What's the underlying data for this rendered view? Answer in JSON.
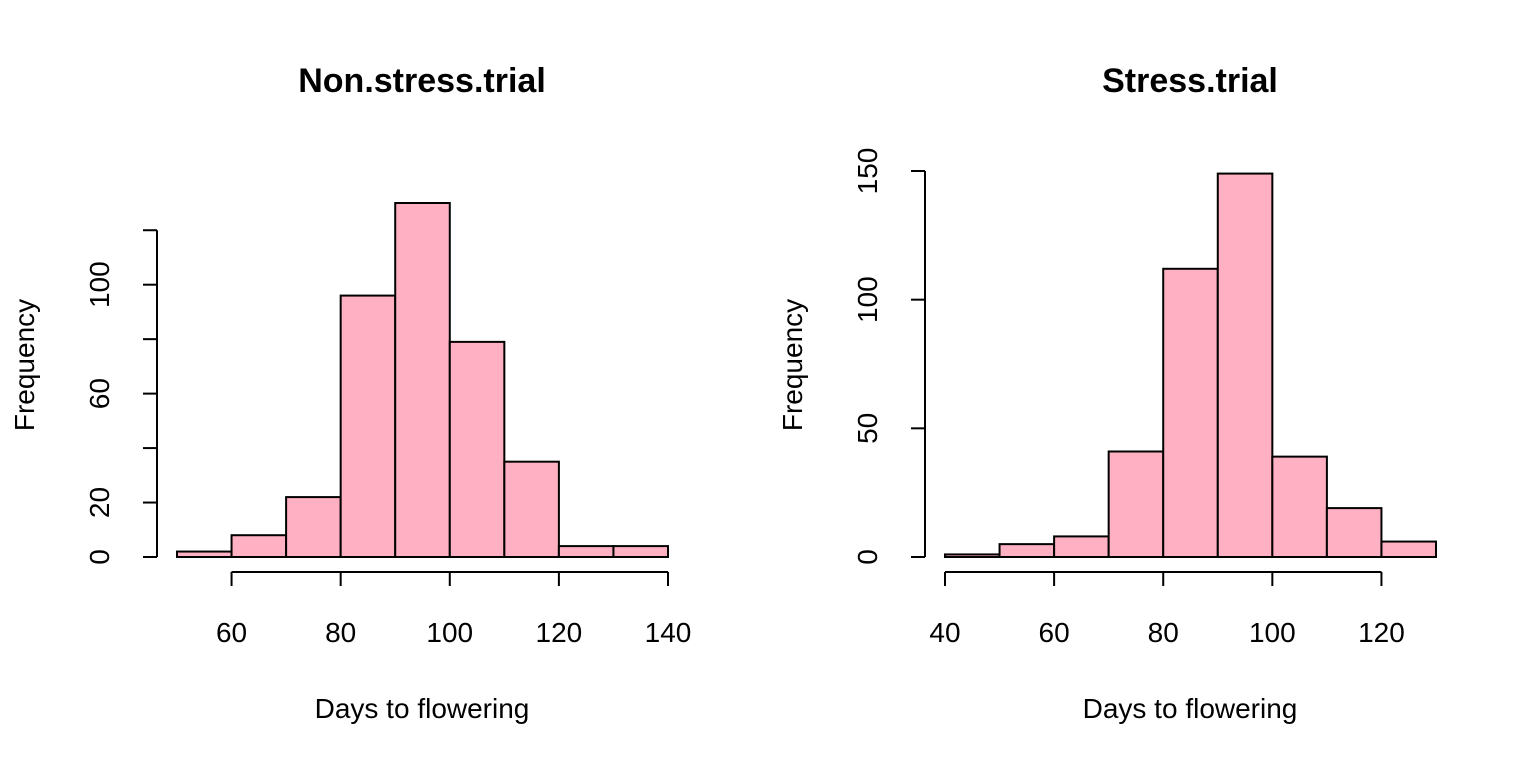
{
  "colors": {
    "bar_fill": "#FFB0C2",
    "bar_stroke": "#000000",
    "background": "#FFFFFF"
  },
  "chart_data": [
    {
      "type": "bar",
      "title": "Non.stress.trial",
      "xlabel": "Days to flowering",
      "ylabel": "Frequency",
      "bin_edges": [
        50,
        60,
        70,
        80,
        90,
        100,
        110,
        120,
        130,
        140
      ],
      "values": [
        2,
        8,
        22,
        96,
        130,
        79,
        35,
        4,
        4
      ],
      "xlim": [
        50,
        140
      ],
      "ylim": [
        0,
        130
      ],
      "x_ticks": [
        60,
        80,
        100,
        120,
        140
      ],
      "x_tick_labels": [
        "60",
        "80",
        "100",
        "120",
        "140"
      ],
      "y_ticks": [
        0,
        20,
        40,
        60,
        80,
        100,
        120
      ],
      "y_tick_labels": [
        "0",
        "20",
        "",
        "60",
        "",
        "100",
        ""
      ],
      "grid": false,
      "legend": "none"
    },
    {
      "type": "bar",
      "title": "Stress.trial",
      "xlabel": "Days to flowering",
      "ylabel": "Frequency",
      "bin_edges": [
        40,
        50,
        60,
        70,
        80,
        90,
        100,
        110,
        120,
        130
      ],
      "values": [
        1,
        5,
        8,
        41,
        112,
        149,
        39,
        19,
        6
      ],
      "xlim": [
        40,
        130
      ],
      "ylim": [
        0,
        150
      ],
      "x_ticks": [
        40,
        60,
        80,
        100,
        120
      ],
      "x_tick_labels": [
        "40",
        "60",
        "80",
        "100",
        "120"
      ],
      "y_ticks": [
        0,
        50,
        100,
        150
      ],
      "y_tick_labels": [
        "0",
        "50",
        "100",
        "150"
      ],
      "grid": false,
      "legend": "none"
    }
  ]
}
